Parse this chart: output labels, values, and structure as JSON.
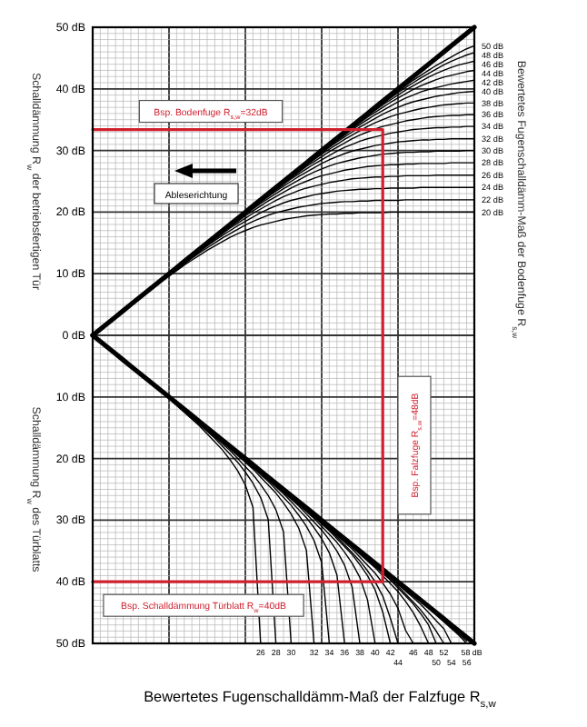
{
  "chart_data": {
    "type": "line",
    "xlabel": "Bewertetes Fugenschalldämm-Maß der Falzfuge R$_{s,w}$",
    "ylabel": "Schalldämmung R$_{w}$ der betriebsfertigen Tür",
    "y2label": "Bewertetes Fugenschalldämm-Maß der Bodenfuge R$_{s,w}$",
    "categories": [
      null,
      null,
      null,
      null,
      null,
      null,
      null,
      null,
      null,
      null,
      null,
      null,
      null,
      null,
      null,
      null,
      null,
      null,
      null,
      null,
      null,
      null,
      null,
      null,
      null,
      null,
      null,
      null,
      null,
      null,
      null,
      null,
      null,
      null,
      null,
      null,
      null,
      null,
      null,
      null,
      null,
      null,
      null,
      null,
      null,
      null,
      null,
      null,
      null,
      null,
      null
    ],
    "ylim": [
      -50,
      50
    ],
    "yticks": [
      {
        "value": 50,
        "label": "50 dB"
      },
      {
        "value": 40,
        "label": "40 dB"
      },
      {
        "value": 30,
        "label": "30 dB"
      },
      {
        "value": 20,
        "label": "20 dB"
      },
      {
        "value": 10,
        "label": "10 dB"
      },
      {
        "value": 0,
        "label": "0 dB"
      },
      {
        "value": -10,
        "label": "10 dB"
      },
      {
        "value": -20,
        "label": "20 dB"
      },
      {
        "value": -30,
        "label": "30 dB"
      },
      {
        "value": -40,
        "label": "40 dB"
      },
      {
        "value": -50,
        "label": "50 dB"
      }
    ],
    "grid": true,
    "series": [
      {
        "name": "50 dB",
        "color": "#000000",
        "values": [
          null,
          null,
          null,
          null,
          null,
          null,
          null,
          null,
          null,
          null,
          null,
          null,
          null,
          null,
          null,
          null,
          null,
          null,
          null,
          null,
          null,
          null,
          null,
          null,
          null,
          null,
          null,
          null,
          null,
          null,
          null,
          null,
          null,
          null,
          null,
          null,
          null,
          null,
          37.7,
          38.7,
          39.6,
          40.5,
          41.4,
          42.2,
          43.0,
          43.8,
          44.5,
          45.2,
          45.9,
          46.5,
          47.0
        ]
      },
      {
        "name": "48 dB",
        "color": "#000000",
        "values": [
          null,
          null,
          null,
          null,
          null,
          null,
          null,
          null,
          null,
          null,
          null,
          null,
          null,
          null,
          null,
          null,
          null,
          null,
          null,
          null,
          null,
          null,
          null,
          null,
          null,
          null,
          null,
          null,
          null,
          null,
          null,
          null,
          null,
          null,
          null,
          null,
          35.7,
          36.7,
          37.6,
          38.5,
          39.4,
          40.2,
          41.0,
          41.8,
          42.5,
          43.2,
          43.9,
          44.5,
          45.0,
          45.5,
          45.9
        ]
      },
      {
        "name": "46 dB",
        "color": "#000000",
        "values": [
          null,
          null,
          null,
          null,
          null,
          null,
          null,
          null,
          null,
          null,
          null,
          null,
          null,
          null,
          null,
          null,
          null,
          null,
          null,
          null,
          null,
          null,
          null,
          null,
          null,
          null,
          null,
          null,
          null,
          null,
          null,
          null,
          null,
          null,
          33.7,
          34.7,
          35.6,
          36.5,
          37.4,
          38.2,
          39.0,
          39.8,
          40.5,
          41.2,
          41.9,
          42.5,
          43.0,
          43.5,
          43.9,
          44.2,
          44.5
        ]
      },
      {
        "name": "44 dB",
        "color": "#000000",
        "values": [
          null,
          null,
          null,
          null,
          null,
          null,
          null,
          null,
          null,
          null,
          null,
          null,
          null,
          null,
          null,
          null,
          null,
          null,
          null,
          null,
          null,
          null,
          null,
          null,
          null,
          null,
          null,
          null,
          null,
          null,
          null,
          null,
          31.7,
          32.7,
          33.6,
          34.5,
          35.4,
          36.2,
          37.0,
          37.8,
          38.5,
          39.2,
          39.9,
          40.5,
          41.0,
          41.5,
          41.9,
          42.2,
          42.5,
          42.8,
          43.0
        ]
      },
      {
        "name": "42 dB",
        "color": "#000000",
        "values": [
          null,
          null,
          null,
          null,
          null,
          null,
          null,
          null,
          null,
          null,
          null,
          null,
          null,
          null,
          null,
          null,
          null,
          null,
          null,
          null,
          null,
          null,
          null,
          null,
          null,
          null,
          null,
          null,
          null,
          null,
          29.7,
          30.7,
          31.6,
          32.5,
          33.4,
          34.2,
          35.0,
          35.8,
          36.5,
          37.2,
          37.9,
          38.5,
          39.0,
          39.5,
          39.9,
          40.2,
          40.5,
          40.8,
          41.0,
          41.2,
          41.4
        ]
      },
      {
        "name": "40 dB",
        "color": "#000000",
        "values": [
          null,
          null,
          null,
          null,
          null,
          null,
          null,
          null,
          null,
          null,
          null,
          null,
          null,
          null,
          null,
          null,
          null,
          null,
          null,
          null,
          null,
          null,
          null,
          null,
          null,
          null,
          null,
          null,
          27.7,
          28.7,
          29.6,
          30.5,
          31.4,
          32.2,
          33.0,
          33.8,
          34.5,
          35.2,
          35.9,
          36.5,
          37.0,
          37.5,
          37.9,
          38.2,
          38.5,
          38.8,
          39.0,
          39.2,
          39.4,
          39.5,
          39.6
        ]
      },
      {
        "name": "38 dB",
        "color": "#000000",
        "values": [
          null,
          null,
          null,
          null,
          null,
          null,
          null,
          null,
          null,
          null,
          null,
          null,
          null,
          null,
          null,
          null,
          null,
          null,
          null,
          null,
          null,
          null,
          null,
          null,
          null,
          null,
          25.7,
          26.7,
          27.6,
          28.5,
          29.4,
          30.2,
          31.0,
          31.8,
          32.5,
          33.2,
          33.9,
          34.5,
          35.0,
          35.5,
          35.9,
          36.2,
          36.5,
          36.8,
          37.0,
          37.2,
          37.4,
          37.5,
          37.6,
          37.7,
          37.7
        ]
      },
      {
        "name": "36 dB",
        "color": "#000000",
        "values": [
          null,
          null,
          null,
          null,
          null,
          null,
          null,
          null,
          null,
          null,
          null,
          null,
          null,
          null,
          null,
          null,
          null,
          null,
          null,
          null,
          null,
          null,
          null,
          null,
          23.7,
          24.7,
          25.6,
          26.5,
          27.4,
          28.2,
          29.0,
          29.8,
          30.5,
          31.2,
          31.9,
          32.5,
          33.0,
          33.5,
          33.9,
          34.2,
          34.5,
          34.8,
          35.0,
          35.2,
          35.4,
          35.5,
          35.6,
          35.7,
          35.7,
          35.8,
          35.8
        ]
      },
      {
        "name": "34 dB",
        "color": "#000000",
        "values": [
          null,
          null,
          null,
          null,
          null,
          null,
          null,
          null,
          null,
          null,
          null,
          null,
          null,
          null,
          null,
          null,
          null,
          null,
          null,
          null,
          null,
          null,
          21.7,
          22.7,
          23.6,
          24.5,
          25.4,
          26.2,
          27.0,
          27.8,
          28.5,
          29.2,
          29.9,
          30.5,
          31.0,
          31.5,
          31.9,
          32.2,
          32.5,
          32.8,
          33.0,
          33.2,
          33.4,
          33.5,
          33.6,
          33.7,
          33.7,
          33.8,
          33.8,
          33.9,
          33.9
        ]
      },
      {
        "name": "32 dB",
        "color": "#000000",
        "values": [
          null,
          null,
          null,
          null,
          null,
          null,
          null,
          null,
          null,
          null,
          null,
          null,
          null,
          null,
          null,
          null,
          null,
          null,
          null,
          null,
          19.7,
          20.7,
          21.6,
          22.5,
          23.4,
          24.2,
          25.0,
          25.8,
          26.5,
          27.2,
          27.9,
          28.5,
          29.0,
          29.5,
          29.9,
          30.2,
          30.5,
          30.8,
          31.0,
          31.2,
          31.4,
          31.5,
          31.6,
          31.7,
          31.7,
          31.8,
          31.8,
          31.9,
          31.9,
          31.9,
          31.9
        ]
      },
      {
        "name": "30 dB",
        "color": "#000000",
        "values": [
          null,
          null,
          null,
          null,
          null,
          null,
          null,
          null,
          null,
          null,
          null,
          null,
          null,
          null,
          null,
          null,
          null,
          null,
          17.7,
          18.7,
          19.6,
          20.5,
          21.4,
          22.2,
          23.0,
          23.8,
          24.5,
          25.2,
          25.9,
          26.5,
          27.0,
          27.5,
          27.9,
          28.2,
          28.5,
          28.8,
          29.0,
          29.2,
          29.4,
          29.5,
          29.6,
          29.7,
          29.7,
          29.8,
          29.8,
          29.9,
          29.9,
          29.9,
          29.9,
          30,
          30
        ]
      },
      {
        "name": "28 dB",
        "color": "#000000",
        "values": [
          null,
          null,
          null,
          null,
          null,
          null,
          null,
          null,
          null,
          null,
          null,
          null,
          null,
          null,
          null,
          null,
          15.7,
          16.7,
          17.6,
          18.5,
          19.4,
          20.2,
          21.0,
          21.8,
          22.5,
          23.2,
          23.9,
          24.5,
          25.0,
          25.5,
          25.9,
          26.2,
          26.5,
          26.8,
          27.0,
          27.2,
          27.4,
          27.5,
          27.6,
          27.7,
          27.7,
          27.8,
          27.8,
          27.9,
          27.9,
          27.9,
          27.9,
          28,
          28,
          28,
          28
        ]
      },
      {
        "name": "26 dB",
        "color": "#000000",
        "values": [
          null,
          null,
          null,
          null,
          null,
          null,
          null,
          null,
          null,
          null,
          null,
          null,
          null,
          null,
          13.7,
          14.7,
          15.6,
          16.5,
          17.4,
          18.2,
          19.0,
          19.8,
          20.5,
          21.2,
          21.9,
          22.5,
          23.0,
          23.5,
          23.9,
          24.2,
          24.5,
          24.8,
          25.0,
          25.2,
          25.4,
          25.5,
          25.6,
          25.7,
          25.7,
          25.8,
          25.8,
          25.9,
          25.9,
          25.9,
          25.9,
          26,
          26,
          26,
          26,
          26,
          26
        ]
      },
      {
        "name": "24 dB",
        "color": "#000000",
        "values": [
          null,
          null,
          null,
          null,
          null,
          null,
          null,
          null,
          null,
          null,
          null,
          null,
          11.7,
          12.7,
          13.6,
          14.5,
          15.4,
          16.2,
          17.0,
          17.8,
          18.5,
          19.2,
          19.9,
          20.5,
          21.0,
          21.5,
          21.9,
          22.2,
          22.5,
          22.8,
          23.0,
          23.2,
          23.4,
          23.5,
          23.6,
          23.7,
          23.7,
          23.8,
          23.8,
          23.9,
          23.9,
          23.9,
          23.9,
          24,
          24,
          24,
          24,
          24,
          24,
          24,
          24
        ]
      },
      {
        "name": "22 dB",
        "color": "#000000",
        "values": [
          null,
          null,
          null,
          null,
          null,
          null,
          null,
          null,
          null,
          null,
          9.7,
          10.7,
          11.6,
          12.5,
          13.4,
          14.2,
          15.0,
          15.8,
          16.5,
          17.2,
          17.9,
          18.5,
          19.0,
          19.5,
          19.9,
          20.2,
          20.5,
          20.8,
          21.0,
          21.2,
          21.4,
          21.5,
          21.6,
          21.7,
          21.7,
          21.8,
          21.8,
          21.9,
          21.9,
          21.9,
          21.9,
          22,
          22,
          22,
          22,
          22,
          22,
          22,
          22,
          22,
          22
        ]
      },
      {
        "name": "20 dB",
        "color": "#000000",
        "values": [
          null,
          null,
          null,
          null,
          null,
          null,
          null,
          null,
          7.7,
          8.7,
          9.6,
          10.5,
          11.4,
          12.2,
          13.0,
          13.8,
          14.5,
          15.2,
          15.9,
          16.5,
          17.0,
          17.5,
          17.9,
          18.2,
          18.5,
          18.8,
          19.0,
          19.2,
          19.4,
          19.5,
          19.6,
          19.7,
          19.7,
          19.8,
          19.8,
          19.9,
          19.9,
          19.9,
          19.9,
          20,
          20,
          20,
          20,
          20,
          20,
          20,
          20,
          20,
          20,
          20,
          20
        ]
      },
      {
        "color": "#000000",
        "values": [
          0,
          1,
          2,
          3,
          4,
          5,
          6,
          7,
          8,
          9,
          10,
          11,
          12,
          13,
          14,
          15,
          16,
          17,
          18,
          19,
          20,
          21,
          22,
          23,
          24,
          25,
          26,
          27,
          28,
          29,
          30,
          31,
          32,
          33,
          34,
          35,
          36,
          37,
          38,
          39,
          40,
          41,
          42,
          43,
          44,
          45,
          46,
          47,
          48,
          49,
          50
        ]
      },
      {
        "name": "26",
        "color": "#000000",
        "values": [
          null,
          null,
          null,
          null,
          null,
          null,
          null,
          null,
          null,
          null,
          -10.3,
          -11.4,
          -12.5,
          -13.6,
          -14.7,
          -16.0,
          -17.3,
          -18.6,
          -20.2,
          -22.0,
          -24.3,
          -27.9,
          -50,
          null,
          null,
          null,
          null,
          null,
          null,
          null,
          null,
          null,
          null,
          null,
          null,
          null,
          null,
          null,
          null,
          null,
          null,
          null,
          null,
          null,
          null,
          null,
          null,
          null,
          null,
          null,
          null
        ]
      },
      {
        "name": "28",
        "color": "#000000",
        "values": [
          null,
          null,
          null,
          null,
          null,
          null,
          null,
          null,
          null,
          null,
          null,
          null,
          -12.3,
          -13.4,
          -14.5,
          -15.6,
          -16.7,
          -18.0,
          -19.3,
          -20.6,
          -22.2,
          -24.0,
          -26.3,
          -29.9,
          -50,
          null,
          null,
          null,
          null,
          null,
          null,
          null,
          null,
          null,
          null,
          null,
          null,
          null,
          null,
          null,
          null,
          null,
          null,
          null,
          null,
          null,
          null,
          null,
          null,
          null,
          null
        ]
      },
      {
        "name": "30",
        "color": "#000000",
        "values": [
          null,
          null,
          null,
          null,
          null,
          null,
          null,
          null,
          null,
          null,
          null,
          null,
          null,
          null,
          -14.3,
          -15.4,
          -16.5,
          -17.6,
          -18.7,
          -20.0,
          -21.3,
          -22.6,
          -24.2,
          -26.0,
          -28.3,
          -31.9,
          -50,
          null,
          null,
          null,
          null,
          null,
          null,
          null,
          null,
          null,
          null,
          null,
          null,
          null,
          null,
          null,
          null,
          null,
          null,
          null,
          null,
          null,
          null,
          null,
          null
        ]
      },
      {
        "name": "32",
        "color": "#000000",
        "values": [
          null,
          null,
          null,
          null,
          null,
          null,
          null,
          null,
          null,
          null,
          null,
          null,
          null,
          null,
          null,
          null,
          null,
          -17.3,
          -18.4,
          -19.5,
          -20.6,
          -21.7,
          -23.0,
          -24.3,
          -25.6,
          -27.2,
          -29.0,
          -31.3,
          -34.9,
          -50,
          null,
          null,
          null,
          null,
          null,
          null,
          null,
          null,
          null,
          null,
          null,
          null,
          null,
          null,
          null,
          null,
          null,
          null,
          null,
          null,
          null
        ]
      },
      {
        "name": "34",
        "color": "#000000",
        "values": [
          null,
          null,
          null,
          null,
          null,
          null,
          null,
          null,
          null,
          null,
          null,
          null,
          null,
          null,
          null,
          null,
          null,
          null,
          null,
          -19.3,
          -20.4,
          -21.5,
          -22.6,
          -23.7,
          -25.0,
          -26.3,
          -27.6,
          -29.2,
          -31.0,
          -33.3,
          -36.9,
          -50,
          null,
          null,
          null,
          null,
          null,
          null,
          null,
          null,
          null,
          null,
          null,
          null,
          null,
          null,
          null,
          null,
          null,
          null,
          null
        ]
      },
      {
        "name": "36",
        "color": "#000000",
        "values": [
          null,
          null,
          null,
          null,
          null,
          null,
          null,
          null,
          null,
          null,
          null,
          null,
          null,
          null,
          null,
          null,
          null,
          null,
          null,
          null,
          null,
          -21.3,
          -22.4,
          -23.5,
          -24.6,
          -25.7,
          -27.0,
          -28.3,
          -29.6,
          -31.2,
          -33.0,
          -35.3,
          -38.9,
          -50,
          null,
          null,
          null,
          null,
          null,
          null,
          null,
          null,
          null,
          null,
          null,
          null,
          null,
          null,
          null,
          null,
          null
        ]
      },
      {
        "name": "38",
        "color": "#000000",
        "values": [
          null,
          null,
          null,
          null,
          null,
          null,
          null,
          null,
          null,
          null,
          null,
          null,
          null,
          null,
          null,
          null,
          null,
          null,
          null,
          null,
          null,
          null,
          null,
          -23.3,
          -24.4,
          -25.5,
          -26.6,
          -27.7,
          -29.0,
          -30.3,
          -31.6,
          -33.2,
          -35.0,
          -37.3,
          -40.9,
          -50,
          null,
          null,
          null,
          null,
          null,
          null,
          null,
          null,
          null,
          null,
          null,
          null,
          null,
          null,
          null
        ]
      },
      {
        "name": "40",
        "color": "#000000",
        "values": [
          null,
          null,
          null,
          null,
          null,
          null,
          null,
          null,
          null,
          null,
          null,
          null,
          null,
          null,
          null,
          null,
          null,
          null,
          null,
          null,
          null,
          null,
          null,
          null,
          null,
          -25.3,
          -26.4,
          -27.5,
          -28.6,
          -29.7,
          -31.0,
          -32.3,
          -33.6,
          -35.2,
          -37.0,
          -39.3,
          -42.9,
          -50,
          null,
          null,
          null,
          null,
          null,
          null,
          null,
          null,
          null,
          null,
          null,
          null,
          null
        ]
      },
      {
        "name": "42",
        "color": "#000000",
        "values": [
          null,
          null,
          null,
          null,
          null,
          null,
          null,
          null,
          null,
          null,
          null,
          null,
          null,
          null,
          null,
          null,
          null,
          null,
          null,
          null,
          null,
          null,
          null,
          null,
          null,
          null,
          null,
          -27.3,
          -28.4,
          -29.5,
          -30.6,
          -31.7,
          -33.0,
          -34.3,
          -35.6,
          -37.2,
          -39.0,
          -41.3,
          -44.9,
          -50,
          null,
          null,
          null,
          null,
          null,
          null,
          null,
          null,
          null,
          null,
          null
        ]
      },
      {
        "name": "44",
        "color": "#000000",
        "values": [
          null,
          null,
          null,
          null,
          null,
          null,
          null,
          null,
          null,
          null,
          null,
          null,
          null,
          null,
          null,
          null,
          null,
          null,
          null,
          null,
          null,
          null,
          null,
          null,
          null,
          null,
          null,
          null,
          -28.3,
          -29.4,
          -30.5,
          -31.6,
          -32.7,
          -34.0,
          -35.3,
          -36.6,
          -38.2,
          -40.0,
          -42.3,
          -45.9,
          -50,
          null,
          null,
          null,
          null,
          null,
          null,
          null,
          null,
          null,
          null
        ]
      },
      {
        "name": "46",
        "color": "#000000",
        "values": [
          null,
          null,
          null,
          null,
          null,
          null,
          null,
          null,
          null,
          null,
          null,
          null,
          null,
          null,
          null,
          null,
          null,
          null,
          null,
          null,
          null,
          null,
          null,
          null,
          null,
          null,
          null,
          null,
          null,
          null,
          -30.3,
          -31.4,
          -32.5,
          -33.6,
          -34.7,
          -36.0,
          -37.3,
          -38.6,
          -40.2,
          -42.0,
          -44.3,
          -47.9,
          -50,
          null,
          null,
          null,
          null,
          null,
          null,
          null,
          null
        ]
      },
      {
        "name": "48",
        "color": "#000000",
        "values": [
          null,
          null,
          null,
          null,
          null,
          null,
          null,
          null,
          null,
          null,
          null,
          null,
          null,
          null,
          null,
          null,
          null,
          null,
          null,
          null,
          null,
          null,
          null,
          null,
          null,
          null,
          null,
          null,
          null,
          null,
          null,
          null,
          null,
          -33.3,
          -34.4,
          -35.5,
          -36.6,
          -37.7,
          -39.0,
          -40.3,
          -41.6,
          -43.2,
          -45.0,
          -47.3,
          -50,
          null,
          null,
          null,
          null,
          null,
          null
        ]
      },
      {
        "name": "50",
        "color": "#000000",
        "values": [
          null,
          null,
          null,
          null,
          null,
          null,
          null,
          null,
          null,
          null,
          null,
          null,
          null,
          null,
          null,
          null,
          null,
          null,
          null,
          null,
          null,
          null,
          null,
          null,
          null,
          null,
          null,
          null,
          null,
          null,
          null,
          null,
          null,
          null,
          null,
          -35.3,
          -36.4,
          -37.5,
          -38.6,
          -39.7,
          -41.0,
          -42.3,
          -43.6,
          -45.2,
          -47.0,
          -50,
          null,
          null,
          null,
          null,
          null
        ]
      },
      {
        "name": "52",
        "color": "#000000",
        "values": [
          null,
          null,
          null,
          null,
          null,
          null,
          null,
          null,
          null,
          null,
          null,
          null,
          null,
          null,
          null,
          null,
          null,
          null,
          null,
          null,
          null,
          null,
          null,
          null,
          null,
          null,
          null,
          null,
          null,
          null,
          null,
          null,
          null,
          null,
          null,
          null,
          -36.3,
          -37.4,
          -38.5,
          -39.6,
          -40.7,
          -42.0,
          -43.3,
          -44.6,
          -46.2,
          -48.0,
          -50,
          null,
          null,
          null,
          null
        ]
      },
      {
        "name": "54",
        "color": "#000000",
        "values": [
          null,
          null,
          null,
          null,
          null,
          null,
          null,
          null,
          null,
          null,
          null,
          null,
          null,
          null,
          null,
          null,
          null,
          null,
          null,
          null,
          null,
          null,
          null,
          null,
          null,
          null,
          null,
          null,
          null,
          null,
          null,
          null,
          null,
          null,
          null,
          null,
          null,
          null,
          null,
          -39.3,
          -40.4,
          -41.5,
          -42.6,
          -43.7,
          -45.0,
          -46.3,
          -47.6,
          -50,
          null,
          null,
          null
        ]
      },
      {
        "name": "56",
        "color": "#000000",
        "values": [
          null,
          null,
          null,
          null,
          null,
          null,
          null,
          null,
          null,
          null,
          null,
          null,
          null,
          null,
          null,
          null,
          null,
          null,
          null,
          null,
          null,
          null,
          null,
          null,
          null,
          null,
          null,
          null,
          null,
          null,
          null,
          null,
          null,
          null,
          null,
          null,
          null,
          null,
          null,
          null,
          null,
          null,
          null,
          null,
          -44.3,
          -45.4,
          -46.5,
          -47.6,
          -48.7,
          -50.0,
          null
        ]
      },
      {
        "name": "58 dB",
        "color": "#000000",
        "values": [
          null,
          null,
          null,
          null,
          null,
          null,
          null,
          null,
          null,
          null,
          null,
          null,
          null,
          null,
          null,
          null,
          null,
          null,
          null,
          null,
          null,
          null,
          null,
          null,
          null,
          null,
          null,
          null,
          null,
          null,
          null,
          null,
          null,
          null,
          null,
          null,
          null,
          null,
          null,
          null,
          null,
          null,
          null,
          null,
          null,
          null,
          -46.3,
          -47.4,
          -48.5,
          -49.6,
          null
        ]
      },
      {
        "color": "#000000",
        "values": [
          0,
          -1,
          -2,
          -3,
          -4,
          -5,
          -6,
          -7,
          -8,
          -9,
          -10,
          -11,
          -12,
          -13,
          -14,
          -15,
          -16,
          -17,
          -18,
          -19,
          -20,
          -21,
          -22,
          -23,
          -24,
          -25,
          -26,
          -27,
          -28,
          -29,
          -30,
          -31,
          -32,
          -33,
          -34,
          -35,
          -36,
          -37,
          -38,
          -39,
          -40,
          -41,
          -42,
          -43,
          -44,
          -45,
          -46,
          -47,
          -48,
          -49,
          -50
        ]
      },
      {
        "color": "#d0202e",
        "values": [
          33.4,
          33.4,
          33.4,
          33.4,
          33.4,
          33.4,
          33.4,
          33.4,
          33.4,
          33.4,
          33.4,
          33.4,
          33.4,
          33.4,
          33.4,
          33.4,
          33.4,
          33.4,
          33.4,
          33.4,
          33.4,
          33.4,
          33.4,
          33.4,
          33.4,
          33.4,
          33.4,
          33.4,
          33.4,
          33.4,
          33.4,
          33.4,
          33.4,
          33.4,
          33.4,
          33.4,
          33.4,
          33.4,
          33.4,
          null,
          null,
          null,
          null,
          null,
          null,
          null,
          null,
          null,
          null,
          null,
          null
        ]
      },
      {
        "color": "#d0202e",
        "values": [
          -40,
          -40,
          -40,
          -40,
          -40,
          -40,
          -40,
          -40,
          -40,
          -40,
          -40,
          -40,
          -40,
          -40,
          -40,
          -40,
          -40,
          -40,
          -40,
          -40,
          -40,
          -40,
          -40,
          -40,
          -40,
          -40,
          -40,
          -40,
          -40,
          -40,
          -40,
          -40,
          -40,
          -40,
          -40,
          -40,
          -40,
          -40,
          -40,
          null,
          null,
          null,
          null,
          null,
          null,
          null,
          null,
          null,
          null,
          null,
          null
        ]
      }
    ],
    "annotations": [
      {
        "text": "Bsp. Bodenfuge R$_{s,w}$=32dB",
        "y": 33.4
      },
      "Bsp. Falzfuge R$_{s,w}$=48dB",
      {
        "text": "Bsp. Schalldämmung Türblatt R$_{w}$=40dB",
        "y": -40
      },
      "Ableserichtung",
      "Schalldämmung R$_{w}$ des Türblatts"
    ]
  }
}
